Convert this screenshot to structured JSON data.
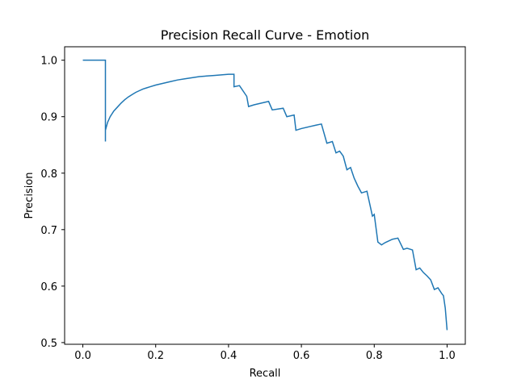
{
  "chart_data": {
    "type": "line",
    "title": "Precision Recall Curve - Emotion",
    "xlabel": "Recall",
    "ylabel": "Precision",
    "xlim": [
      -0.05,
      1.05
    ],
    "ylim": [
      0.497,
      1.0238
    ],
    "grid": false,
    "line_style": "step",
    "colors": {
      "line": "#1f77b4",
      "axes": "#000000",
      "background": "#ffffff"
    },
    "x_ticks": [
      {
        "value": 0.0,
        "label": "0.0"
      },
      {
        "value": 0.2,
        "label": "0.2"
      },
      {
        "value": 0.4,
        "label": "0.4"
      },
      {
        "value": 0.6,
        "label": "0.6"
      },
      {
        "value": 0.8,
        "label": "0.8"
      },
      {
        "value": 1.0,
        "label": "1.0"
      }
    ],
    "y_ticks": [
      {
        "value": 0.5,
        "label": "0.5"
      },
      {
        "value": 0.6,
        "label": "0.6"
      },
      {
        "value": 0.7,
        "label": "0.7"
      },
      {
        "value": 0.8,
        "label": "0.8"
      },
      {
        "value": 0.9,
        "label": "0.9"
      },
      {
        "value": 1.0,
        "label": "1.0"
      }
    ],
    "series": [
      {
        "x": [
          0.0,
          0.062,
          0.062,
          0.062,
          0.068,
          0.075,
          0.085,
          0.095,
          0.105,
          0.115,
          0.125,
          0.135,
          0.145,
          0.155,
          0.165,
          0.175,
          0.185,
          0.2,
          0.22,
          0.24,
          0.26,
          0.28,
          0.3,
          0.32,
          0.34,
          0.36,
          0.38,
          0.4,
          0.415,
          0.415,
          0.43,
          0.45,
          0.455,
          0.47,
          0.49,
          0.51,
          0.52,
          0.55,
          0.56,
          0.58,
          0.585,
          0.6,
          0.62,
          0.64,
          0.655,
          0.67,
          0.685,
          0.695,
          0.705,
          0.715,
          0.725,
          0.735,
          0.745,
          0.755,
          0.765,
          0.78,
          0.795,
          0.8,
          0.81,
          0.82,
          0.83,
          0.84,
          0.85,
          0.865,
          0.88,
          0.89,
          0.905,
          0.915,
          0.925,
          0.935,
          0.945,
          0.955,
          0.965,
          0.975,
          0.985,
          0.99,
          0.995,
          1.0
        ],
        "y": [
          1.0,
          1.0,
          0.856,
          0.876,
          0.89,
          0.9,
          0.91,
          0.917,
          0.924,
          0.93,
          0.935,
          0.939,
          0.943,
          0.946,
          0.949,
          0.951,
          0.953,
          0.956,
          0.959,
          0.962,
          0.965,
          0.967,
          0.969,
          0.971,
          0.972,
          0.973,
          0.974,
          0.975,
          0.975,
          0.953,
          0.955,
          0.936,
          0.918,
          0.921,
          0.924,
          0.927,
          0.912,
          0.915,
          0.9,
          0.903,
          0.876,
          0.879,
          0.882,
          0.885,
          0.887,
          0.853,
          0.856,
          0.836,
          0.839,
          0.83,
          0.806,
          0.81,
          0.791,
          0.777,
          0.765,
          0.768,
          0.724,
          0.727,
          0.678,
          0.673,
          0.677,
          0.68,
          0.683,
          0.685,
          0.665,
          0.667,
          0.664,
          0.629,
          0.632,
          0.624,
          0.618,
          0.611,
          0.594,
          0.597,
          0.587,
          0.583,
          0.561,
          0.522
        ]
      }
    ]
  }
}
